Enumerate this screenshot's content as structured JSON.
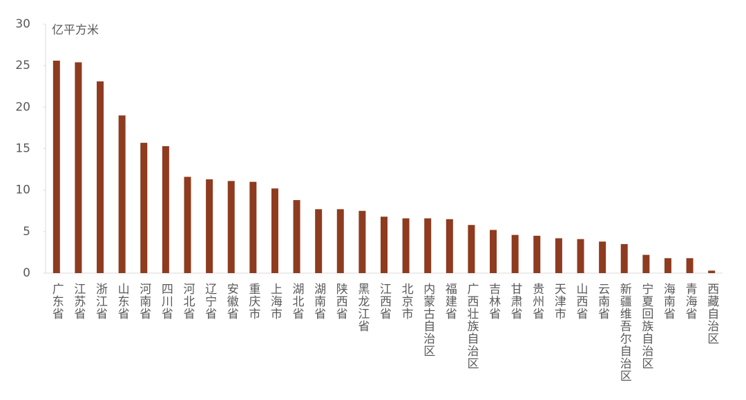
{
  "chart_data": {
    "type": "bar",
    "y_label": "亿平方米",
    "categories": [
      "广东省",
      "江苏省",
      "浙江省",
      "山东省",
      "河南省",
      "四川省",
      "河北省",
      "辽宁省",
      "安徽省",
      "重庆市",
      "上海市",
      "湖北省",
      "湖南省",
      "陕西省",
      "黑龙江省",
      "江西省",
      "北京市",
      "内蒙古自治区",
      "福建省",
      "广西壮族自治区",
      "吉林省",
      "甘肃省",
      "贵州省",
      "天津市",
      "山西省",
      "云南省",
      "新疆维吾尔自治区",
      "宁夏回族自治区",
      "海南省",
      "青海省",
      "西藏自治区"
    ],
    "values": [
      25.6,
      25.4,
      23.1,
      19.0,
      15.7,
      15.3,
      11.6,
      11.3,
      11.1,
      11.0,
      10.2,
      8.8,
      7.7,
      7.7,
      7.5,
      6.8,
      6.6,
      6.6,
      6.5,
      5.8,
      5.2,
      4.6,
      4.5,
      4.2,
      4.1,
      3.8,
      3.5,
      2.2,
      1.8,
      1.8,
      0.3
    ],
    "color": "#8e3b1f",
    "ylim": [
      0,
      30
    ],
    "yticks": [
      0,
      5,
      10,
      15,
      20,
      25,
      30
    ],
    "grid": false
  }
}
